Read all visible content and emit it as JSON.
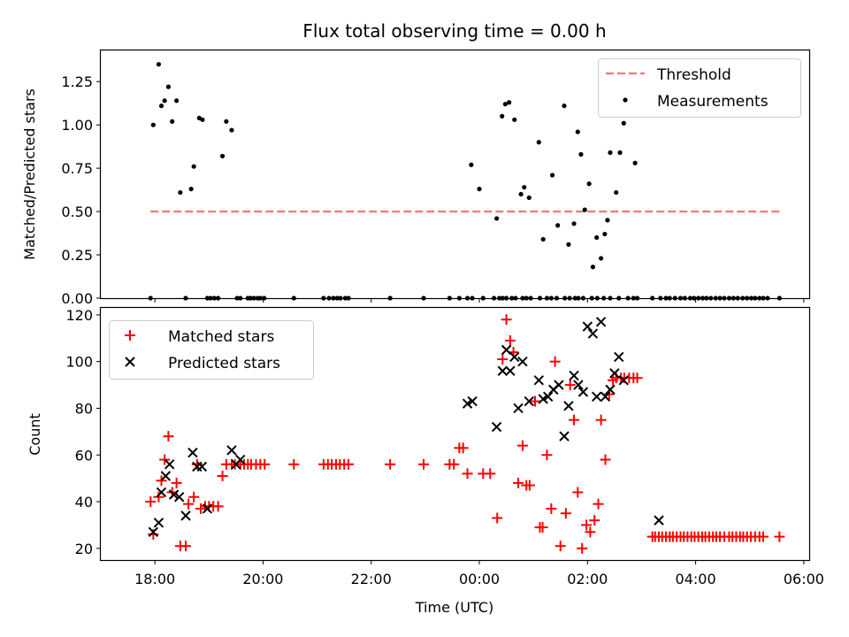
{
  "chart_data": [
    {
      "type": "scatter",
      "title": "Flux total observing time = 0.00 h",
      "xlabel": "",
      "ylabel": "Matched/Predicted stars",
      "xlim_hours": [
        17.0,
        30.1
      ],
      "ylim": [
        0,
        1.43
      ],
      "yticks": [
        0.0,
        0.25,
        0.5,
        0.75,
        1.0,
        1.25
      ],
      "yticklabels": [
        "0.00",
        "0.25",
        "0.50",
        "0.75",
        "1.00",
        "1.25"
      ],
      "xticks_hours": [
        18,
        20,
        22,
        24,
        26,
        28,
        30
      ],
      "legend_position": "upper right",
      "threshold": {
        "name": "Threshold",
        "value": 0.5,
        "x_range_hours": [
          17.92,
          29.55
        ],
        "color": "#ff7373"
      },
      "measurements": {
        "name": "Measurements",
        "color": "#000000",
        "x_hours": [
          17.92,
          17.97,
          18.07,
          18.12,
          18.18,
          18.25,
          18.32,
          18.4,
          18.47,
          18.57,
          18.67,
          18.72,
          18.82,
          18.88,
          18.97,
          19.03,
          19.1,
          19.17,
          19.25,
          19.32,
          19.42,
          19.52,
          19.58,
          19.72,
          19.77,
          19.83,
          19.9,
          19.95,
          20.02,
          20.57,
          21.12,
          21.22,
          21.3,
          21.37,
          21.43,
          21.52,
          21.58,
          22.35,
          22.97,
          23.45,
          23.63,
          23.78,
          23.87,
          24.07,
          24.27,
          24.37,
          24.43,
          24.5,
          24.6,
          24.67,
          24.8,
          24.87,
          24.95,
          25.12,
          25.25,
          25.33,
          25.43,
          25.58,
          25.67,
          25.77,
          25.83,
          25.92,
          26.08,
          26.18,
          26.3,
          26.42,
          26.58,
          26.75,
          26.85,
          26.92,
          27.2,
          27.35,
          27.45,
          27.52,
          27.62,
          27.72,
          27.8,
          27.9,
          27.97,
          28.05,
          28.13,
          28.2,
          28.28,
          28.37,
          28.45,
          28.53,
          28.62,
          28.7,
          28.78,
          28.87,
          28.95,
          29.03,
          29.1,
          29.18,
          29.25,
          29.33,
          29.55
        ],
        "y": [
          0,
          1.0,
          1.35,
          1.11,
          1.14,
          1.22,
          1.02,
          1.14,
          0.61,
          0,
          0.63,
          0.76,
          1.04,
          1.03,
          0,
          0,
          0,
          0,
          0.82,
          1.02,
          0.97,
          0,
          0,
          0,
          0,
          0,
          0,
          0,
          0,
          0,
          0,
          0,
          0,
          0,
          0,
          0,
          0,
          0,
          0,
          0,
          0,
          0,
          0,
          0,
          0,
          0,
          0,
          0,
          0,
          0,
          0,
          0,
          0,
          0,
          0,
          0,
          0,
          0,
          0,
          0,
          0,
          0,
          0,
          0,
          0,
          0,
          0,
          0,
          0,
          0,
          0,
          0,
          0,
          0,
          0,
          0,
          0,
          0,
          0,
          0,
          0,
          0,
          0,
          0,
          0,
          0,
          0,
          0,
          0,
          0,
          0,
          0,
          0,
          0,
          0,
          0,
          0
        ],
        "extra_x_hours": [
          23.85,
          24.0,
          24.32,
          24.42,
          24.48,
          24.55,
          24.65,
          24.77,
          24.83,
          24.92,
          25.1,
          25.18,
          25.35,
          25.45,
          25.57,
          25.65,
          25.75,
          25.82,
          25.88,
          25.95,
          26.03,
          26.1,
          26.17,
          26.25,
          26.32,
          26.37,
          26.42,
          26.53,
          26.6,
          26.67,
          26.88
        ],
        "extra_y": [
          0.77,
          0.63,
          0.46,
          1.05,
          1.12,
          1.13,
          1.03,
          0.6,
          0.64,
          0.58,
          0.9,
          0.34,
          0.71,
          0.42,
          1.11,
          0.31,
          0.43,
          0.96,
          0.83,
          0.51,
          0.66,
          0.18,
          0.35,
          0.23,
          0.37,
          0.45,
          0.84,
          0.61,
          0.84,
          1.01,
          0.78
        ]
      }
    },
    {
      "type": "scatter",
      "xlabel": "Time (UTC)",
      "ylabel": "Count",
      "xlim_hours": [
        17.0,
        30.1
      ],
      "ylim": [
        15,
        123
      ],
      "yticks": [
        20,
        40,
        60,
        80,
        100,
        120
      ],
      "yticklabels": [
        "20",
        "40",
        "60",
        "80",
        "100",
        "120"
      ],
      "xticks_hours": [
        18,
        20,
        22,
        24,
        26,
        28,
        30
      ],
      "xticklabels": [
        "18:00",
        "20:00",
        "22:00",
        "00:00",
        "02:00",
        "04:00",
        "06:00"
      ],
      "legend_position": "upper left",
      "series": [
        {
          "name": "Matched stars",
          "marker": "+",
          "color": "#ff0000",
          "x_hours": [
            17.92,
            17.97,
            18.07,
            18.12,
            18.18,
            18.25,
            18.32,
            18.4,
            18.47,
            18.57,
            18.62,
            18.72,
            18.78,
            18.85,
            18.93,
            19.0,
            19.08,
            19.17,
            19.25,
            19.32,
            19.42,
            19.48,
            19.58,
            19.65,
            19.72,
            19.78,
            19.87,
            19.95,
            20.03,
            20.57,
            21.12,
            21.2,
            21.27,
            21.35,
            21.42,
            21.5,
            21.58,
            22.35,
            22.97,
            23.45,
            23.53,
            23.63,
            23.7,
            23.78,
            24.07,
            24.2,
            24.33,
            24.43,
            24.5,
            24.57,
            24.63,
            24.72,
            24.8,
            24.87,
            24.93,
            25.03,
            25.12,
            25.17,
            25.25,
            25.33,
            25.4,
            25.5,
            25.6,
            25.68,
            25.75,
            25.82,
            25.9,
            25.98,
            26.05,
            26.13,
            26.2,
            26.25,
            26.33,
            26.4,
            26.47,
            26.53,
            26.62,
            26.68,
            26.77,
            26.85,
            26.92,
            27.2,
            27.25,
            27.32,
            27.38,
            27.45,
            27.52,
            27.58,
            27.65,
            27.72,
            27.78,
            27.85,
            27.92,
            27.98,
            28.05,
            28.12,
            28.18,
            28.25,
            28.32,
            28.38,
            28.45,
            28.53,
            28.62,
            28.68,
            28.75,
            28.82,
            28.88,
            28.95,
            29.02,
            29.1,
            29.18,
            29.25,
            29.55
          ],
          "y": [
            40,
            26,
            42,
            49,
            58,
            68,
            44,
            48,
            21,
            21,
            39,
            42,
            56,
            37,
            38,
            38,
            38,
            38,
            51,
            56,
            56,
            56,
            56,
            56,
            56,
            56,
            56,
            56,
            56,
            56,
            56,
            56,
            56,
            56,
            56,
            56,
            56,
            56,
            56,
            56,
            56,
            63,
            63,
            52,
            52,
            52,
            33,
            101,
            118,
            109,
            104,
            48,
            64,
            47,
            47,
            83,
            29,
            29,
            60,
            37,
            100,
            21,
            35,
            90,
            75,
            44,
            20,
            30,
            27,
            32,
            39,
            75,
            58,
            86,
            92,
            93,
            93,
            93,
            93,
            93,
            93,
            25,
            25,
            25,
            25,
            25,
            25,
            25,
            25,
            25,
            25,
            25,
            25,
            25,
            25,
            25,
            25,
            25,
            25,
            25,
            25,
            25,
            25,
            25,
            25,
            25,
            25,
            25,
            25,
            25,
            25,
            25,
            25
          ]
        },
        {
          "name": "Predicted stars",
          "marker": "x",
          "color": "#000000",
          "x_hours": [
            17.97,
            18.07,
            18.12,
            18.2,
            18.27,
            18.35,
            18.45,
            18.57,
            18.7,
            18.78,
            18.87,
            18.97,
            19.42,
            19.5,
            19.58,
            23.78,
            23.87,
            24.32,
            24.43,
            24.5,
            24.57,
            24.65,
            24.72,
            24.8,
            24.92,
            25.1,
            25.18,
            25.27,
            25.37,
            25.47,
            25.57,
            25.65,
            25.75,
            25.83,
            25.92,
            26.0,
            26.1,
            26.17,
            26.25,
            26.33,
            26.42,
            26.5,
            26.58,
            26.67,
            27.32
          ],
          "y": [
            27,
            31,
            44,
            51,
            56,
            43,
            42,
            34,
            61,
            55,
            55,
            37,
            62,
            56,
            58,
            82,
            83,
            72,
            96,
            105,
            96,
            102,
            80,
            100,
            83,
            92,
            84,
            85,
            88,
            90,
            68,
            81,
            94,
            90,
            87,
            115,
            112,
            85,
            117,
            85,
            88,
            95,
            102,
            92,
            32
          ]
        }
      ]
    }
  ]
}
